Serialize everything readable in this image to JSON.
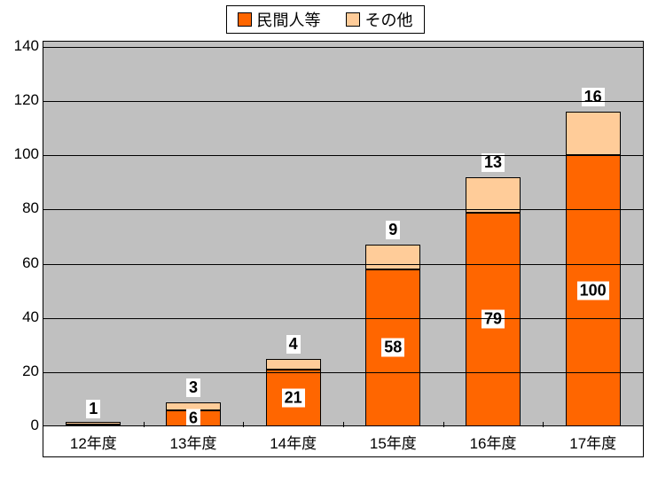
{
  "chart": {
    "type": "stacked-bar",
    "background_color": "#ffffff",
    "plot_background_color": "#c0c0c0",
    "gridline_color": "#000000",
    "border_color": "#000000",
    "legend": {
      "items": [
        {
          "label": "民間人等",
          "color": "#ff6600"
        },
        {
          "label": "その他",
          "color": "#ffcc99"
        }
      ]
    },
    "y_axis": {
      "min": 0,
      "max": 140,
      "step": 20,
      "tick_fontsize": 17
    },
    "x_axis": {
      "label_fontsize": 17
    },
    "categories": [
      "12年度",
      "13年度",
      "14年度",
      "15年度",
      "16年度",
      "17年度"
    ],
    "series": [
      {
        "name": "民間人等",
        "color": "#ff6600",
        "values": [
          0,
          6,
          21,
          58,
          79,
          100
        ]
      },
      {
        "name": "その他",
        "color": "#ffcc99",
        "values": [
          1,
          3,
          4,
          9,
          13,
          16
        ]
      }
    ],
    "bar_width_ratio": 0.55,
    "value_label_fontsize": 18,
    "value_label_fontweight": "bold"
  }
}
